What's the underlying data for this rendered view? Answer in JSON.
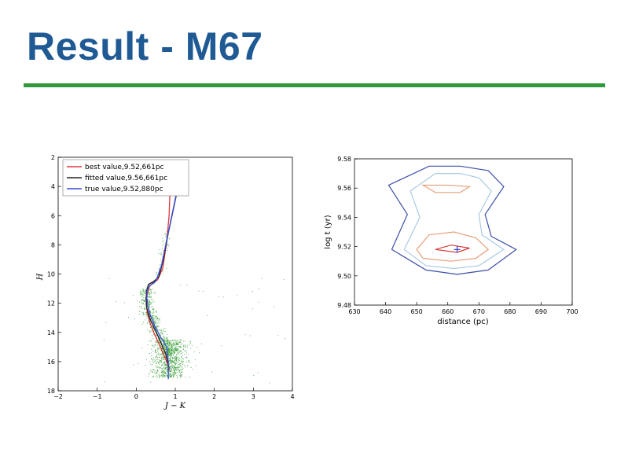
{
  "slide": {
    "title": "Result - M67",
    "accent_color": "#1f5a95",
    "rule_color": "#2f9a3b"
  },
  "chart_data": [
    {
      "type": "scatter",
      "xlabel": "J − K",
      "ylabel": "H",
      "xlim": [
        -2,
        4
      ],
      "ylim": [
        18,
        2
      ],
      "y_inverted": true,
      "xticks": [
        "−2",
        "−1",
        "0",
        "1",
        "2",
        "3",
        "4"
      ],
      "yticks": [
        "2",
        "4",
        "6",
        "8",
        "10",
        "12",
        "14",
        "16",
        "18"
      ],
      "legend_position": "top-left",
      "points_color": "#2e9a2e",
      "series": [
        {
          "name": "best value,9.52,661pc",
          "color": "#e03a3a",
          "x": [
            0.85,
            0.78,
            0.62,
            0.48,
            0.36,
            0.28,
            0.26,
            0.28,
            0.33,
            0.42,
            0.55,
            0.68,
            0.78,
            0.84,
            0.87,
            0.88
          ],
          "y": [
            16.6,
            16.0,
            15.0,
            14.2,
            13.4,
            12.6,
            12.0,
            11.4,
            10.9,
            10.6,
            10.4,
            9.6,
            7.8,
            6.0,
            4.0,
            3.0
          ]
        },
        {
          "name": "fitted value,9.56,661pc",
          "color": "#222222",
          "x": [
            0.84,
            0.76,
            0.6,
            0.46,
            0.34,
            0.27,
            0.25,
            0.27,
            0.32,
            0.45,
            0.58,
            0.68,
            0.82,
            0.98,
            1.12,
            1.23
          ],
          "y": [
            16.5,
            15.5,
            14.5,
            13.7,
            13.0,
            12.3,
            11.7,
            11.1,
            10.7,
            10.5,
            10.2,
            9.2,
            7.2,
            5.2,
            3.4,
            2.2
          ]
        },
        {
          "name": "true value,9.52,880pc",
          "color": "#3a4ad8",
          "x": [
            0.82,
            0.82,
            0.78,
            0.62,
            0.48,
            0.36,
            0.3,
            0.27,
            0.28,
            0.35,
            0.5,
            0.65,
            0.8,
            0.95,
            1.08,
            1.18
          ],
          "y": [
            17.2,
            16.0,
            15.0,
            14.3,
            13.6,
            12.8,
            12.2,
            11.6,
            11.1,
            10.8,
            10.5,
            9.4,
            7.4,
            5.5,
            3.8,
            2.8
          ]
        }
      ]
    },
    {
      "type": "contour",
      "xlabel": "distance (pc)",
      "ylabel": "log t (yr)",
      "xlim": [
        630,
        700
      ],
      "ylim": [
        9.48,
        9.58
      ],
      "xticks": [
        "630",
        "640",
        "650",
        "660",
        "670",
        "680",
        "690",
        "700"
      ],
      "yticks": [
        "9.48",
        "9.50",
        "9.52",
        "9.54",
        "9.56",
        "9.58"
      ],
      "best_fit_marker": {
        "x": 663,
        "y": 9.518
      },
      "contours": [
        {
          "color": "#3d4fa8",
          "x": [
            654,
            664,
            673,
            678,
            672,
            674,
            682,
            673,
            663,
            653,
            642,
            647,
            641,
            654
          ],
          "y": [
            9.575,
            9.575,
            9.572,
            9.561,
            9.542,
            9.527,
            9.518,
            9.504,
            9.501,
            9.504,
            9.518,
            9.542,
            9.562,
            9.575
          ]
        },
        {
          "color": "#a9cbe6",
          "x": [
            656,
            664,
            670,
            674,
            670,
            671,
            678,
            670,
            662,
            653,
            646,
            651,
            648,
            656
          ],
          "y": [
            9.57,
            9.57,
            9.567,
            9.558,
            9.542,
            9.528,
            9.518,
            9.507,
            9.505,
            9.507,
            9.518,
            9.54,
            9.558,
            9.57
          ]
        },
        {
          "color": "#e5a27e",
          "x": [
            652,
            660,
            667,
            664,
            656,
            652
          ],
          "y": [
            9.562,
            9.562,
            9.561,
            9.557,
            9.557,
            9.562
          ]
        },
        {
          "color": "#e5a27e",
          "x": [
            654,
            662,
            669,
            673,
            669,
            661,
            652,
            650,
            654
          ],
          "y": [
            9.528,
            9.53,
            9.526,
            9.518,
            9.512,
            9.51,
            9.512,
            9.518,
            9.528
          ]
        },
        {
          "color": "#d63a3a",
          "x": [
            656,
            661,
            667,
            663,
            656
          ],
          "y": [
            9.518,
            9.521,
            9.519,
            9.516,
            9.518
          ]
        }
      ]
    }
  ]
}
